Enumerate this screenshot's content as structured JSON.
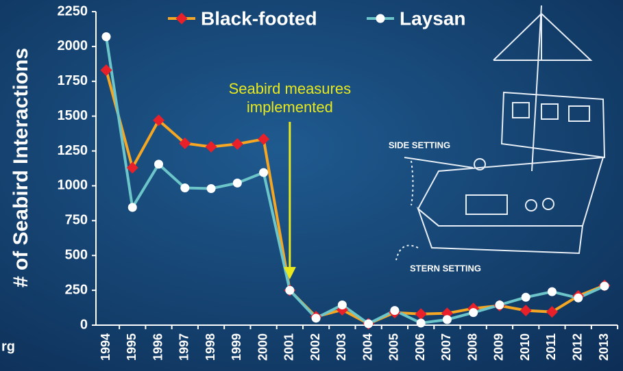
{
  "chart_data": {
    "type": "line",
    "y_label": "# of Seabird Interactions",
    "categories": [
      "1994",
      "1995",
      "1996",
      "1997",
      "1998",
      "1999",
      "2000",
      "2001",
      "2002",
      "2003",
      "2004",
      "2005",
      "2006",
      "2007",
      "2008",
      "2009",
      "2010",
      "2011",
      "2012",
      "2013"
    ],
    "series": [
      {
        "name": "Black-footed",
        "color": "#f5a623",
        "marker_color": "#e8202a",
        "marker": "diamond",
        "values": [
          1830,
          1130,
          1470,
          1305,
          1280,
          1300,
          1335,
          250,
          60,
          110,
          10,
          90,
          80,
          85,
          120,
          140,
          105,
          95,
          210,
          285
        ]
      },
      {
        "name": "Laysan",
        "color": "#6cc5c9",
        "marker_color": "#ffffff",
        "marker": "circle",
        "values": [
          2070,
          845,
          1155,
          985,
          980,
          1020,
          1095,
          250,
          50,
          145,
          10,
          105,
          15,
          40,
          90,
          145,
          200,
          240,
          195,
          280
        ]
      }
    ],
    "ylim": [
      0,
      2250
    ],
    "yticks": [
      0,
      250,
      500,
      750,
      1000,
      1250,
      1500,
      1750,
      2000,
      2250
    ],
    "grid": false,
    "annotation": {
      "lines": [
        "Seabird measures",
        "implemented"
      ],
      "category": "2001",
      "color": "#e8e81c"
    }
  },
  "illustration": {
    "labels": [
      "SIDE SETTING",
      "STERN SETTING"
    ]
  },
  "source_fragment": "rg"
}
